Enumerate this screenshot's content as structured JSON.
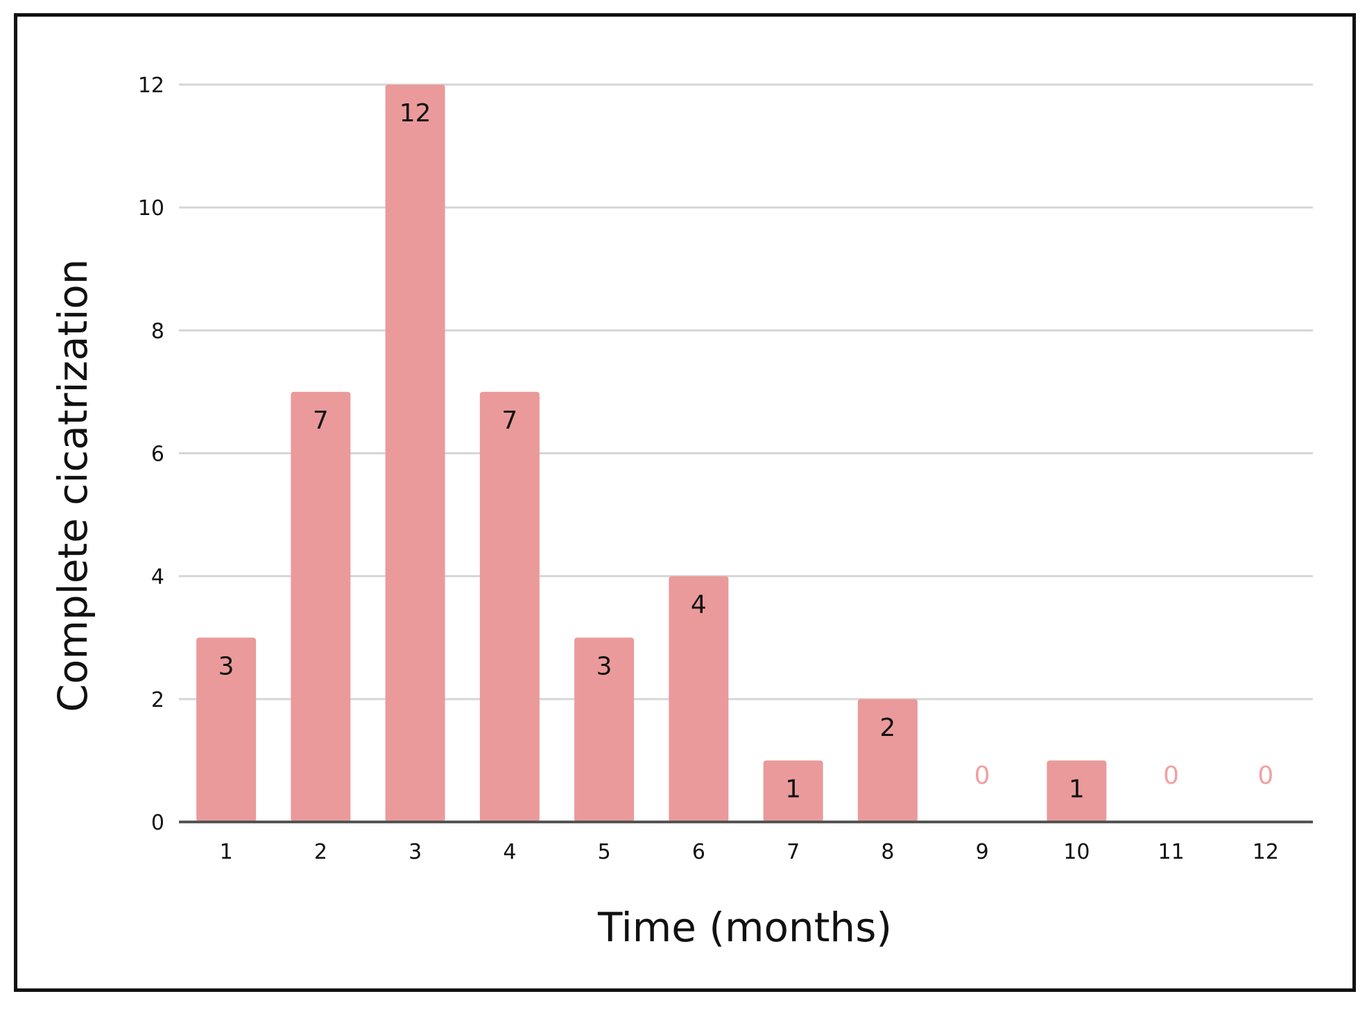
{
  "chart_data": {
    "type": "bar",
    "title": "",
    "xlabel": "Time (months)",
    "ylabel": "Complete cicatrization",
    "categories": [
      "1",
      "2",
      "3",
      "4",
      "5",
      "6",
      "7",
      "8",
      "9",
      "10",
      "11",
      "12"
    ],
    "values": [
      3,
      7,
      12,
      7,
      3,
      4,
      1,
      2,
      0,
      1,
      0,
      0
    ],
    "ylim": [
      0,
      12
    ],
    "yticks": [
      "0",
      "2",
      "4",
      "6",
      "8",
      "10",
      "12"
    ],
    "data_labels": [
      "3",
      "7",
      "12",
      "7",
      "3",
      "4",
      "1",
      "2",
      "0",
      "1",
      "0",
      "0"
    ],
    "grid": true,
    "legend": "none",
    "colors": {
      "bar": "#ea9a9a",
      "zero_label": "#f2a0a0",
      "grid": "#d6d6d6",
      "axis": "#555555",
      "frame": "#111111"
    }
  }
}
